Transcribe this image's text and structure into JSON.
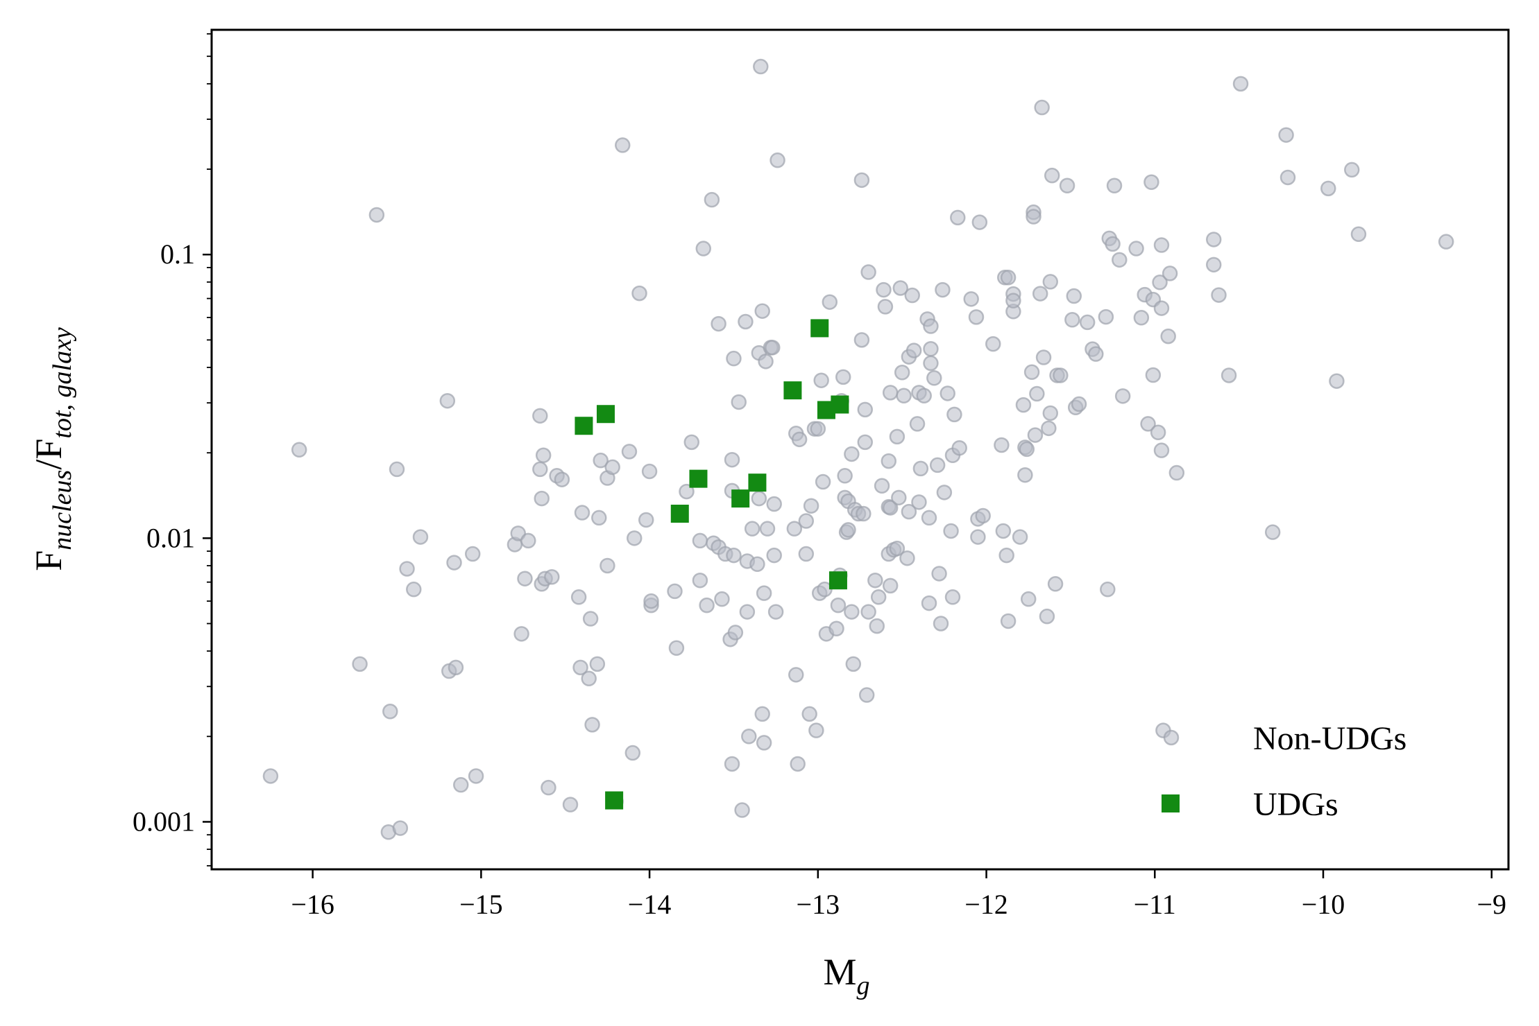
{
  "chart_data": {
    "type": "scatter",
    "xlabel": {
      "base": "M",
      "sub": "g"
    },
    "ylabel": {
      "num_base": "F",
      "num_sub": "nucleus",
      "sep": "/",
      "den_base": "F",
      "den_sub": "tot, galaxy"
    },
    "xlim": [
      -16.6,
      -8.9
    ],
    "ylim": [
      0.00068,
      0.62
    ],
    "yscale": "log",
    "xticks": [
      -16,
      -15,
      -14,
      -13,
      -12,
      -11,
      -10,
      -9
    ],
    "xtick_labels": [
      "−16",
      "−15",
      "−14",
      "−13",
      "−12",
      "−11",
      "−10",
      "−9"
    ],
    "yticks": [
      0.001,
      0.01,
      0.1
    ],
    "ytick_labels": [
      "0.001",
      "0.01",
      "0.1"
    ],
    "legend": {
      "position": "lower-right",
      "entries": [
        "Non-UDGs",
        "UDGs"
      ]
    },
    "colors": {
      "non_udg_fill": "#b8bcc7",
      "non_udg_edge": "#9ea2ad",
      "udg": "#138a13"
    },
    "series": [
      {
        "name": "Non-UDGs",
        "marker": "circle",
        "points": [
          [
            -16.25,
            0.00145
          ],
          [
            -16.08,
            0.0205
          ],
          [
            -15.72,
            0.0036
          ],
          [
            -15.62,
            0.138
          ],
          [
            -15.55,
            0.00092
          ],
          [
            -15.54,
            0.00245
          ],
          [
            -15.5,
            0.0175
          ],
          [
            -15.48,
            0.00095
          ],
          [
            -15.44,
            0.0078
          ],
          [
            -15.4,
            0.0066
          ],
          [
            -15.36,
            0.0101
          ],
          [
            -15.2,
            0.0305
          ],
          [
            -15.19,
            0.0034
          ],
          [
            -15.16,
            0.0082
          ],
          [
            -15.15,
            0.0035
          ],
          [
            -15.12,
            0.00135
          ],
          [
            -15.05,
            0.0088
          ],
          [
            -15.03,
            0.00145
          ],
          [
            -14.8,
            0.0095
          ],
          [
            -14.78,
            0.0104
          ],
          [
            -14.76,
            0.0046
          ],
          [
            -14.74,
            0.0072
          ],
          [
            -14.72,
            0.0098
          ],
          [
            -14.65,
            0.027
          ],
          [
            -14.65,
            0.0175
          ],
          [
            -14.64,
            0.0069
          ],
          [
            -14.64,
            0.0138
          ],
          [
            -14.63,
            0.0196
          ],
          [
            -14.62,
            0.0072
          ],
          [
            -14.6,
            0.00132
          ],
          [
            -14.58,
            0.0073
          ],
          [
            -14.55,
            0.0166
          ],
          [
            -14.52,
            0.0161
          ],
          [
            -14.47,
            0.00115
          ],
          [
            -14.42,
            0.0062
          ],
          [
            -14.41,
            0.0035
          ],
          [
            -14.4,
            0.0123
          ],
          [
            -14.36,
            0.0032
          ],
          [
            -14.35,
            0.0052
          ],
          [
            -14.34,
            0.0022
          ],
          [
            -14.31,
            0.0036
          ],
          [
            -14.3,
            0.0118
          ],
          [
            -14.29,
            0.0188
          ],
          [
            -14.25,
            0.0163
          ],
          [
            -14.25,
            0.008
          ],
          [
            -14.22,
            0.0178
          ],
          [
            -14.2,
            0.00118
          ],
          [
            -14.16,
            0.243
          ],
          [
            -14.12,
            0.0202
          ],
          [
            -14.1,
            0.00175
          ],
          [
            -14.09,
            0.01
          ],
          [
            -14.06,
            0.073
          ],
          [
            -14.02,
            0.0116
          ],
          [
            -14.0,
            0.0172
          ],
          [
            -13.99,
            0.0058
          ],
          [
            -13.99,
            0.006
          ],
          [
            -13.85,
            0.0065
          ],
          [
            -13.84,
            0.0041
          ],
          [
            -13.78,
            0.0146
          ],
          [
            -13.75,
            0.0218
          ],
          [
            -13.7,
            0.0098
          ],
          [
            -13.7,
            0.0071
          ],
          [
            -13.68,
            0.105
          ],
          [
            -13.66,
            0.0058
          ],
          [
            -13.63,
            0.156
          ],
          [
            -13.62,
            0.0096
          ],
          [
            -13.59,
            0.0093
          ],
          [
            -13.59,
            0.057
          ],
          [
            -13.57,
            0.0061
          ],
          [
            -13.55,
            0.0088
          ],
          [
            -13.52,
            0.0044
          ],
          [
            -13.51,
            0.0016
          ],
          [
            -13.51,
            0.0147
          ],
          [
            -13.51,
            0.0189
          ],
          [
            -13.5,
            0.0087
          ],
          [
            -13.5,
            0.043
          ],
          [
            -13.49,
            0.00465
          ],
          [
            -13.47,
            0.0302
          ],
          [
            -13.45,
            0.0011
          ],
          [
            -13.43,
            0.058
          ],
          [
            -13.42,
            0.0083
          ],
          [
            -13.42,
            0.0055
          ],
          [
            -13.41,
            0.002
          ],
          [
            -13.39,
            0.0108
          ],
          [
            -13.36,
            0.0081
          ],
          [
            -13.35,
            0.0138
          ],
          [
            -13.35,
            0.045
          ],
          [
            -13.34,
            0.46
          ],
          [
            -13.33,
            0.0632
          ],
          [
            -13.33,
            0.0024
          ],
          [
            -13.32,
            0.0064
          ],
          [
            -13.32,
            0.0019
          ],
          [
            -13.31,
            0.042
          ],
          [
            -13.3,
            0.0108
          ],
          [
            -13.28,
            0.047
          ],
          [
            -13.27,
            0.047
          ],
          [
            -13.26,
            0.0087
          ],
          [
            -13.26,
            0.0132
          ],
          [
            -13.25,
            0.0055
          ],
          [
            -13.24,
            0.215
          ],
          [
            -13.14,
            0.0108
          ],
          [
            -13.13,
            0.0033
          ],
          [
            -13.13,
            0.0234
          ],
          [
            -13.12,
            0.0016
          ],
          [
            -13.11,
            0.0223
          ],
          [
            -13.07,
            0.0115
          ],
          [
            -13.07,
            0.0088
          ],
          [
            -13.05,
            0.0024
          ],
          [
            -13.04,
            0.013
          ],
          [
            -13.02,
            0.0243
          ],
          [
            -13.01,
            0.0021
          ],
          [
            -13.0,
            0.0243
          ],
          [
            -12.99,
            0.0064
          ],
          [
            -12.98,
            0.036
          ],
          [
            -12.97,
            0.0158
          ],
          [
            -12.96,
            0.0066
          ],
          [
            -12.95,
            0.0046
          ],
          [
            -12.93,
            0.068
          ],
          [
            -12.89,
            0.0048
          ],
          [
            -12.88,
            0.0058
          ],
          [
            -12.87,
            0.0074
          ],
          [
            -12.86,
            0.0305
          ],
          [
            -12.85,
            0.037
          ],
          [
            -12.84,
            0.0139
          ],
          [
            -12.84,
            0.0166
          ],
          [
            -12.83,
            0.0105
          ],
          [
            -12.82,
            0.0135
          ],
          [
            -12.82,
            0.0107
          ],
          [
            -12.8,
            0.0198
          ],
          [
            -12.8,
            0.0055
          ],
          [
            -12.79,
            0.0036
          ],
          [
            -12.78,
            0.0126
          ],
          [
            -12.76,
            0.0122
          ],
          [
            -12.74,
            0.05
          ],
          [
            -12.74,
            0.183
          ],
          [
            -12.73,
            0.0122
          ],
          [
            -12.72,
            0.0218
          ],
          [
            -12.72,
            0.0284
          ],
          [
            -12.71,
            0.0028
          ],
          [
            -12.7,
            0.0055
          ],
          [
            -12.7,
            0.0867
          ],
          [
            -12.66,
            0.0071
          ],
          [
            -12.65,
            0.0049
          ],
          [
            -12.64,
            0.0062
          ],
          [
            -12.62,
            0.0153
          ],
          [
            -12.61,
            0.0751
          ],
          [
            -12.6,
            0.0655
          ],
          [
            -12.58,
            0.0129
          ],
          [
            -12.58,
            0.0187
          ],
          [
            -12.58,
            0.0088
          ],
          [
            -12.57,
            0.0128
          ],
          [
            -12.57,
            0.0326
          ],
          [
            -12.57,
            0.0068
          ],
          [
            -12.55,
            0.0091
          ],
          [
            -12.53,
            0.0092
          ],
          [
            -12.53,
            0.0228
          ],
          [
            -12.52,
            0.0139
          ],
          [
            -12.51,
            0.0762
          ],
          [
            -12.5,
            0.0384
          ],
          [
            -12.49,
            0.0318
          ],
          [
            -12.47,
            0.0085
          ],
          [
            -12.46,
            0.0436
          ],
          [
            -12.46,
            0.0124
          ],
          [
            -12.44,
            0.0718
          ],
          [
            -12.43,
            0.0459
          ],
          [
            -12.41,
            0.0253
          ],
          [
            -12.4,
            0.0134
          ],
          [
            -12.4,
            0.0326
          ],
          [
            -12.39,
            0.0176
          ],
          [
            -12.37,
            0.0318
          ],
          [
            -12.35,
            0.0592
          ],
          [
            -12.34,
            0.0118
          ],
          [
            -12.34,
            0.0059
          ],
          [
            -12.33,
            0.0559
          ],
          [
            -12.33,
            0.0465
          ],
          [
            -12.33,
            0.0414
          ],
          [
            -12.31,
            0.0367
          ],
          [
            -12.29,
            0.0181
          ],
          [
            -12.28,
            0.0075
          ],
          [
            -12.27,
            0.005
          ],
          [
            -12.26,
            0.0751
          ],
          [
            -12.25,
            0.0145
          ],
          [
            -12.23,
            0.0324
          ],
          [
            -12.21,
            0.0106
          ],
          [
            -12.2,
            0.0062
          ],
          [
            -12.2,
            0.0196
          ],
          [
            -12.19,
            0.0273
          ],
          [
            -12.17,
            0.135
          ],
          [
            -12.16,
            0.0208
          ],
          [
            -12.09,
            0.0697
          ],
          [
            -12.06,
            0.0602
          ],
          [
            -12.05,
            0.0117
          ],
          [
            -12.05,
            0.0101
          ],
          [
            -12.04,
            0.13
          ],
          [
            -12.02,
            0.012
          ],
          [
            -11.96,
            0.0484
          ],
          [
            -11.91,
            0.0213
          ],
          [
            -11.9,
            0.0106
          ],
          [
            -11.89,
            0.083
          ],
          [
            -11.88,
            0.0087
          ],
          [
            -11.87,
            0.0051
          ],
          [
            -11.87,
            0.083
          ],
          [
            -11.84,
            0.063
          ],
          [
            -11.84,
            0.0726
          ],
          [
            -11.84,
            0.0688
          ],
          [
            -11.8,
            0.0101
          ],
          [
            -11.78,
            0.0295
          ],
          [
            -11.77,
            0.0209
          ],
          [
            -11.77,
            0.0167
          ],
          [
            -11.76,
            0.0206
          ],
          [
            -11.75,
            0.0061
          ],
          [
            -11.73,
            0.0385
          ],
          [
            -11.72,
            0.141
          ],
          [
            -11.72,
            0.136
          ],
          [
            -11.71,
            0.0231
          ],
          [
            -11.7,
            0.0323
          ],
          [
            -11.68,
            0.0728
          ],
          [
            -11.67,
            0.33
          ],
          [
            -11.66,
            0.0434
          ],
          [
            -11.64,
            0.0053
          ],
          [
            -11.63,
            0.0244
          ],
          [
            -11.62,
            0.0276
          ],
          [
            -11.62,
            0.0802
          ],
          [
            -11.61,
            0.19
          ],
          [
            -11.59,
            0.0069
          ],
          [
            -11.58,
            0.0375
          ],
          [
            -11.56,
            0.0375
          ],
          [
            -11.52,
            0.175
          ],
          [
            -11.49,
            0.0589
          ],
          [
            -11.48,
            0.0714
          ],
          [
            -11.47,
            0.0289
          ],
          [
            -11.45,
            0.0297
          ],
          [
            -11.4,
            0.0577
          ],
          [
            -11.37,
            0.0464
          ],
          [
            -11.35,
            0.0446
          ],
          [
            -11.29,
            0.0603
          ],
          [
            -11.28,
            0.0066
          ],
          [
            -11.27,
            0.114
          ],
          [
            -11.25,
            0.109
          ],
          [
            -11.24,
            0.175
          ],
          [
            -11.21,
            0.0958
          ],
          [
            -11.19,
            0.0317
          ],
          [
            -11.11,
            0.105
          ],
          [
            -11.08,
            0.0599
          ],
          [
            -11.06,
            0.0722
          ],
          [
            -11.04,
            0.0253
          ],
          [
            -11.02,
            0.18
          ],
          [
            -11.01,
            0.0694
          ],
          [
            -11.01,
            0.0376
          ],
          [
            -10.98,
            0.0236
          ],
          [
            -10.97,
            0.0798
          ],
          [
            -10.96,
            0.0204
          ],
          [
            -10.96,
            0.108
          ],
          [
            -10.96,
            0.0647
          ],
          [
            -10.95,
            0.0021
          ],
          [
            -10.92,
            0.0515
          ],
          [
            -10.91,
            0.0858
          ],
          [
            -10.87,
            0.017
          ],
          [
            -10.65,
            0.113
          ],
          [
            -10.65,
            0.0921
          ],
          [
            -10.62,
            0.072
          ],
          [
            -10.56,
            0.0375
          ],
          [
            -10.49,
            0.4
          ],
          [
            -10.3,
            0.0105
          ],
          [
            -10.22,
            0.264
          ],
          [
            -10.21,
            0.187
          ],
          [
            -9.97,
            0.171
          ],
          [
            -9.92,
            0.0358
          ],
          [
            -9.83,
            0.199
          ],
          [
            -9.79,
            0.118
          ],
          [
            -9.27,
            0.111
          ]
        ]
      },
      {
        "name": "UDGs",
        "marker": "square",
        "points": [
          [
            -14.39,
            0.0249
          ],
          [
            -14.26,
            0.0274
          ],
          [
            -14.21,
            0.00119
          ],
          [
            -13.82,
            0.0122
          ],
          [
            -13.71,
            0.0162
          ],
          [
            -13.46,
            0.0138
          ],
          [
            -13.36,
            0.0157
          ],
          [
            -13.15,
            0.0332
          ],
          [
            -12.99,
            0.055
          ],
          [
            -12.95,
            0.0283
          ],
          [
            -12.87,
            0.0296
          ],
          [
            -12.88,
            0.0071
          ]
        ]
      }
    ]
  }
}
